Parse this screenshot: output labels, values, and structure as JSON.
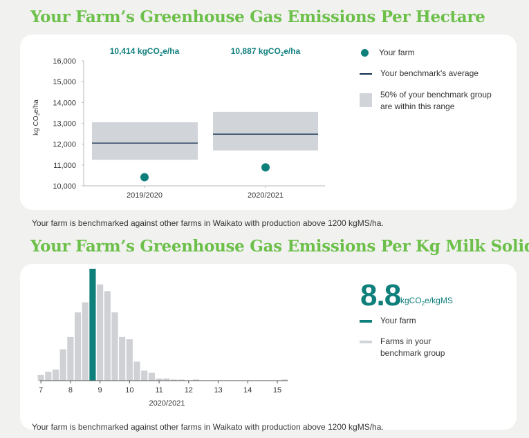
{
  "section1": {
    "title": "Your Farm’s Greenhouse Gas Emissions Per Hectare",
    "note": "Your farm is benchmarked against other farms in Waikato with production above 1200 kgMS/ha.",
    "legend": {
      "your_farm": "Your farm",
      "benchmark_avg": "Your benchmark's average",
      "range": "50% of your benchmark group are within this range"
    }
  },
  "section2": {
    "title": "Your Farm’s Greenhouse Gas Emissions Per Kg Milk Solids",
    "note": "Your farm is benchmarked against other farms in Waikato with production above 1200 kgMS/ha.",
    "big_value": "8.8",
    "big_unit_prefix": "kgCO",
    "big_unit_sub": "2",
    "big_unit_suffix": "e/kgMS",
    "legend": {
      "your_farm": "Your farm",
      "farms_group": "Farms in your benchmark group"
    }
  },
  "colors": {
    "title_green": "#6cc04a",
    "teal": "#0f7f7c",
    "navy": "#0f2d4e",
    "grey_range": "#d1d4d9",
    "grey_bar": "#cfd1d5"
  },
  "chart_data": [
    {
      "type": "range-dot",
      "ylabel": "kg CO2e/ha",
      "ylim": [
        10000,
        16000
      ],
      "yticks": [
        "10,000",
        "11,000",
        "12,000",
        "13,000",
        "14,000",
        "15,000",
        "16,000"
      ],
      "categories": [
        "2019/2020",
        "2020/2021"
      ],
      "your_farm": [
        10414,
        10887
      ],
      "value_labels": [
        "10,414 kgCO2e/ha",
        "10,887 kgCO2e/ha"
      ],
      "benchmark_average": [
        12050,
        12480
      ],
      "range_low": [
        11250,
        11700
      ],
      "range_high": [
        13050,
        13550
      ],
      "legend_position": "right"
    },
    {
      "type": "bar",
      "xlabel": "2020/2021",
      "xticks": [
        "7",
        "8",
        "9",
        "10",
        "11",
        "12",
        "13",
        "14",
        "15"
      ],
      "xlim": [
        6.95,
        15.35
      ],
      "bin_width": 0.25,
      "your_farm_value": 8.75,
      "bins": [
        {
          "x": 7.0,
          "v": 5
        },
        {
          "x": 7.25,
          "v": 8
        },
        {
          "x": 7.5,
          "v": 10
        },
        {
          "x": 7.75,
          "v": 28
        },
        {
          "x": 8.0,
          "v": 39
        },
        {
          "x": 8.25,
          "v": 61
        },
        {
          "x": 8.5,
          "v": 70
        },
        {
          "x": 9.0,
          "v": 86
        },
        {
          "x": 9.25,
          "v": 80
        },
        {
          "x": 9.5,
          "v": 61
        },
        {
          "x": 9.75,
          "v": 39
        },
        {
          "x": 10.0,
          "v": 37
        },
        {
          "x": 10.25,
          "v": 17
        },
        {
          "x": 10.5,
          "v": 9
        },
        {
          "x": 10.75,
          "v": 7
        },
        {
          "x": 11.0,
          "v": 2
        },
        {
          "x": 11.25,
          "v": 2
        },
        {
          "x": 11.5,
          "v": 1
        },
        {
          "x": 11.75,
          "v": 1
        },
        {
          "x": 12.25,
          "v": 1
        },
        {
          "x": 15.25,
          "v": 1
        }
      ],
      "highlight": {
        "x": 8.75,
        "v": 100
      },
      "legend_position": "right"
    }
  ]
}
